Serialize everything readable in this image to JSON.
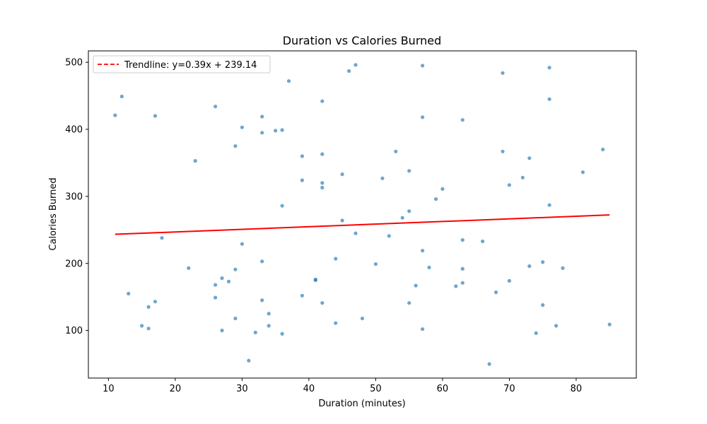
{
  "chart_data": {
    "type": "scatter",
    "title": "Duration vs Calories Burned",
    "xlabel": "Duration (minutes)",
    "ylabel": "Calories Burned",
    "xlim": [
      7,
      89
    ],
    "ylim": [
      29,
      517
    ],
    "xticks": [
      10,
      20,
      30,
      40,
      50,
      60,
      70,
      80
    ],
    "yticks": [
      100,
      200,
      300,
      400,
      500
    ],
    "grid": false,
    "legend_position": "top-left",
    "colors": {
      "points": "#1f77b4",
      "trendline": "#ff0000"
    },
    "trendline": {
      "label": "Trendline: y=0.39x + 239.14",
      "slope": 0.39,
      "intercept": 239.14,
      "x_range": [
        11,
        85
      ]
    },
    "points": [
      [
        11,
        421
      ],
      [
        12,
        449
      ],
      [
        13,
        155
      ],
      [
        15,
        107
      ],
      [
        16,
        103
      ],
      [
        16,
        135
      ],
      [
        17,
        420
      ],
      [
        17,
        143
      ],
      [
        18,
        238
      ],
      [
        22,
        193
      ],
      [
        23,
        353
      ],
      [
        26,
        434
      ],
      [
        26,
        168
      ],
      [
        26,
        149
      ],
      [
        27,
        178
      ],
      [
        27,
        100
      ],
      [
        28,
        173
      ],
      [
        29,
        375
      ],
      [
        29,
        191
      ],
      [
        29,
        118
      ],
      [
        30,
        403
      ],
      [
        30,
        229
      ],
      [
        31,
        55
      ],
      [
        32,
        97
      ],
      [
        33,
        419
      ],
      [
        33,
        395
      ],
      [
        33,
        203
      ],
      [
        33,
        145
      ],
      [
        34,
        125
      ],
      [
        34,
        107
      ],
      [
        35,
        398
      ],
      [
        36,
        399
      ],
      [
        36,
        286
      ],
      [
        36,
        95
      ],
      [
        37,
        472
      ],
      [
        39,
        360
      ],
      [
        39,
        324
      ],
      [
        39,
        152
      ],
      [
        41,
        175
      ],
      [
        41,
        176
      ],
      [
        42,
        442
      ],
      [
        42,
        363
      ],
      [
        42,
        320
      ],
      [
        42,
        313
      ],
      [
        42,
        141
      ],
      [
        44,
        207
      ],
      [
        44,
        111
      ],
      [
        45,
        333
      ],
      [
        45,
        264
      ],
      [
        46,
        487
      ],
      [
        47,
        496
      ],
      [
        47,
        245
      ],
      [
        48,
        118
      ],
      [
        50,
        199
      ],
      [
        51,
        327
      ],
      [
        52,
        241
      ],
      [
        53,
        367
      ],
      [
        54,
        268
      ],
      [
        55,
        338
      ],
      [
        55,
        278
      ],
      [
        55,
        141
      ],
      [
        56,
        167
      ],
      [
        57,
        495
      ],
      [
        57,
        418
      ],
      [
        57,
        219
      ],
      [
        57,
        102
      ],
      [
        58,
        194
      ],
      [
        59,
        296
      ],
      [
        60,
        311
      ],
      [
        62,
        166
      ],
      [
        63,
        414
      ],
      [
        63,
        235
      ],
      [
        63,
        192
      ],
      [
        63,
        171
      ],
      [
        66,
        233
      ],
      [
        67,
        50
      ],
      [
        68,
        157
      ],
      [
        69,
        484
      ],
      [
        69,
        367
      ],
      [
        70,
        317
      ],
      [
        70,
        174
      ],
      [
        72,
        328
      ],
      [
        73,
        357
      ],
      [
        73,
        196
      ],
      [
        74,
        96
      ],
      [
        75,
        202
      ],
      [
        75,
        138
      ],
      [
        76,
        492
      ],
      [
        76,
        445
      ],
      [
        76,
        287
      ],
      [
        77,
        107
      ],
      [
        78,
        193
      ],
      [
        81,
        336
      ],
      [
        84,
        370
      ],
      [
        85,
        109
      ]
    ]
  }
}
